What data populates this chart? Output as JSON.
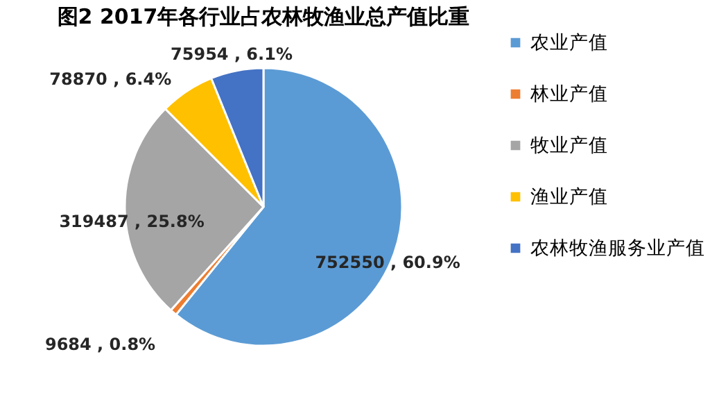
{
  "chart_data": {
    "type": "pie",
    "title": "图2  2017年各行业占农林牧渔业总产值比重",
    "categories": [
      "农业产值",
      "林业产值",
      "牧业产值",
      "渔业产值",
      "农林牧渔服务业产值"
    ],
    "values": [
      752550,
      9684,
      319487,
      78870,
      75954
    ],
    "colors": [
      "#5b9bd5",
      "#ed7d31",
      "#a5a5a5",
      "#ffc000",
      "#4472c4"
    ],
    "value_labels": [
      "752550 , 60.9%",
      "9684 , 0.8%",
      "319487 , 25.8%",
      "78870 , 6.4%",
      "75954 , 6.1%"
    ],
    "legend": "right"
  }
}
